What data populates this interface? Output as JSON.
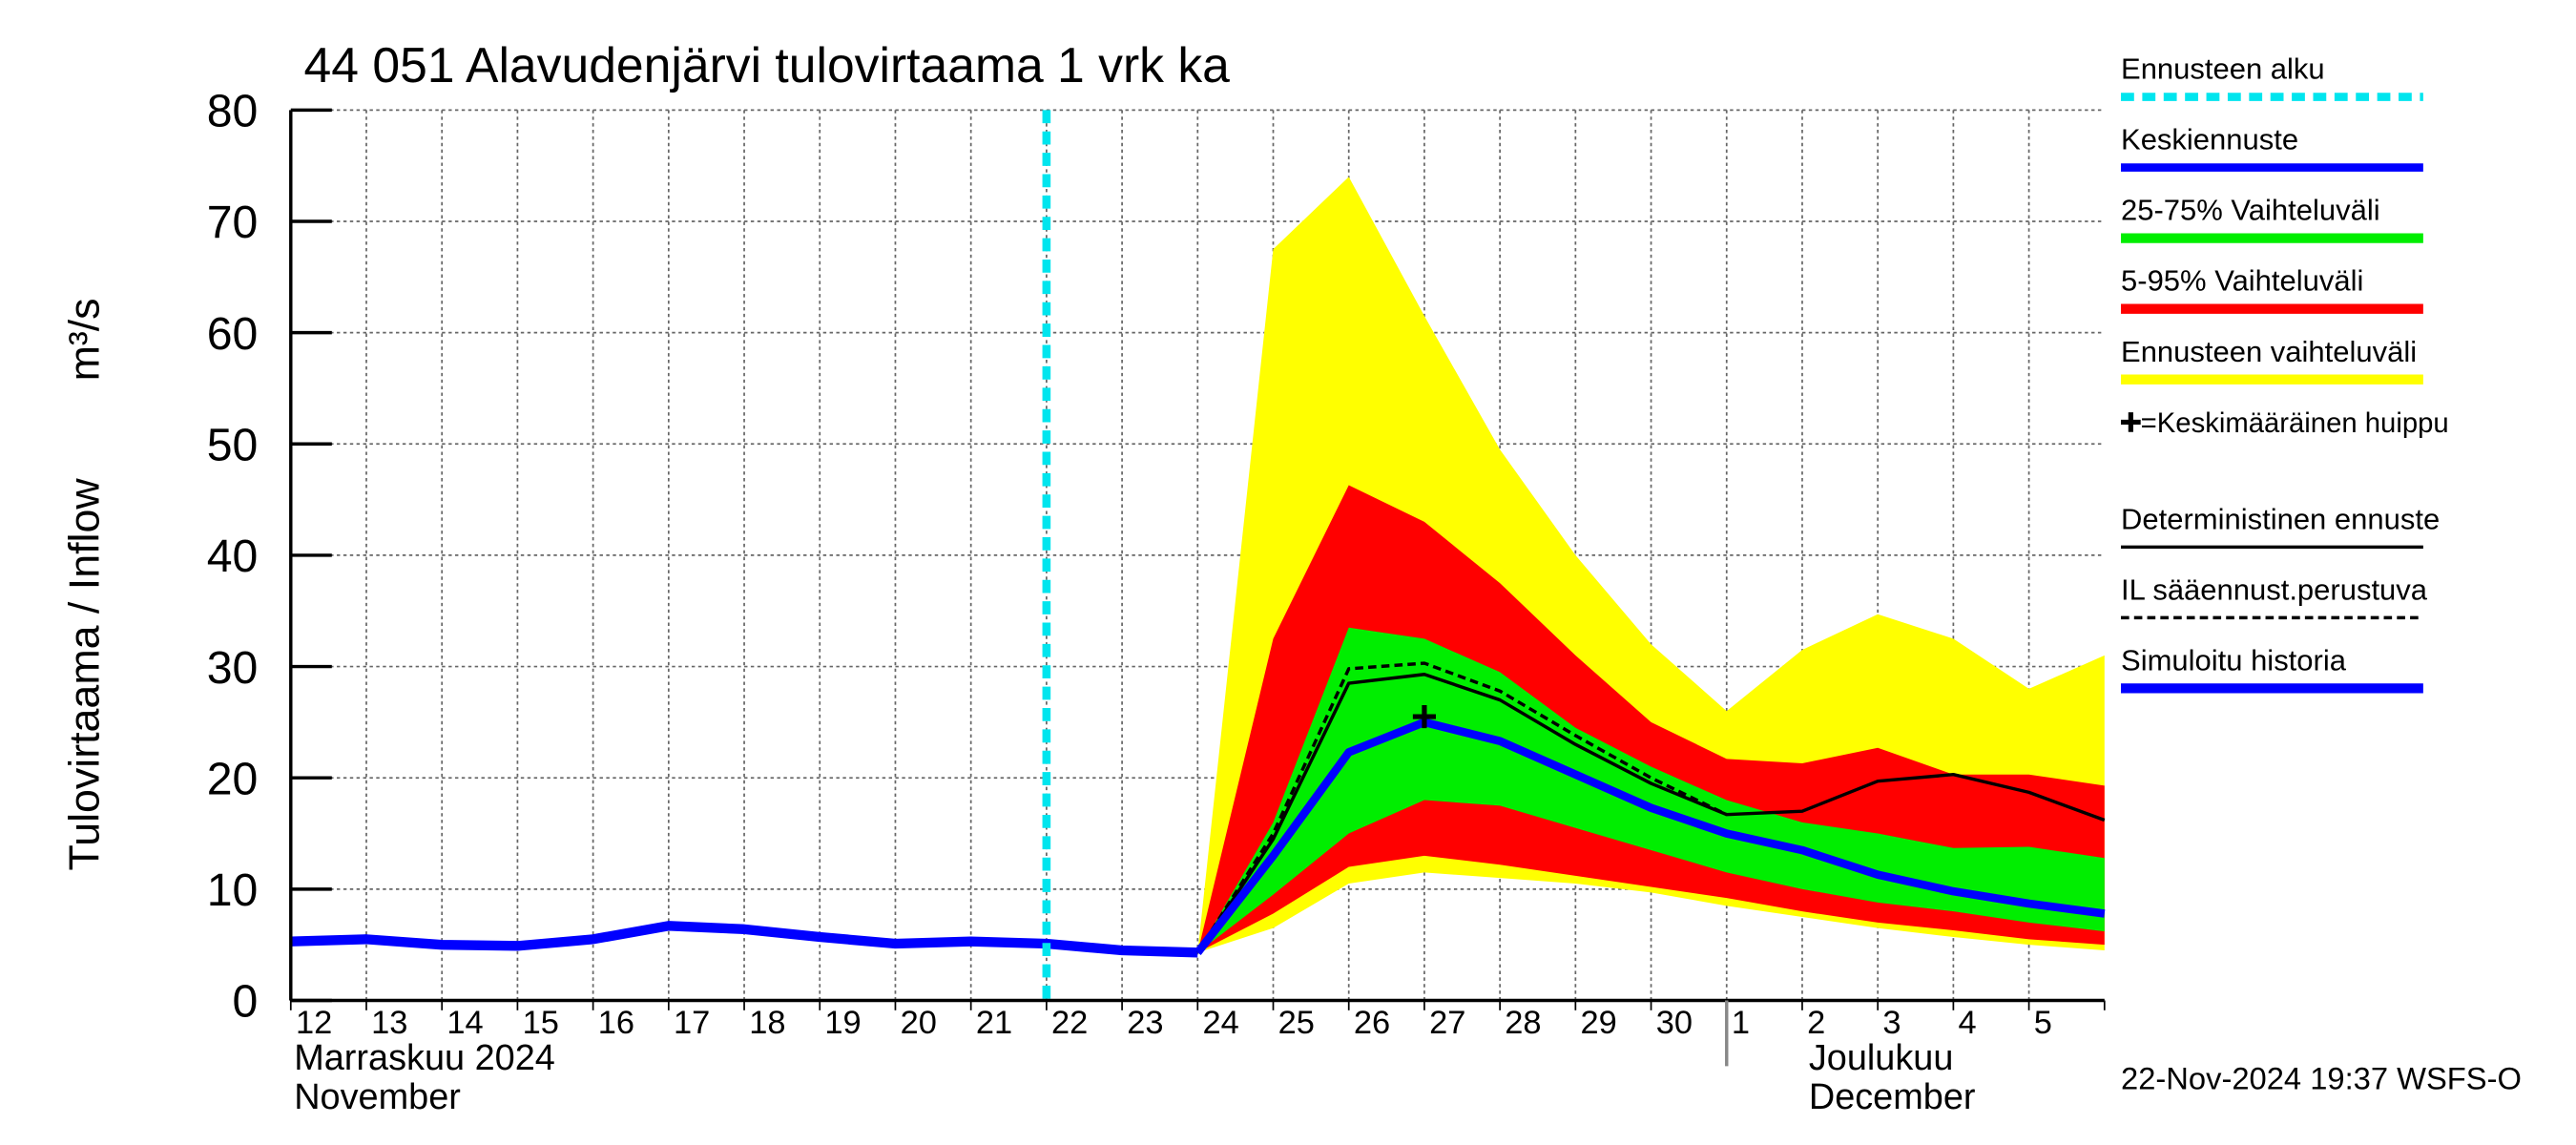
{
  "chart_data": {
    "type": "fan",
    "title": "44 051 Alavudenjärvi tulovirtaama 1 vrk ka",
    "y_label": "Tulovirtaama / Inflow",
    "y_unit": "m³/s",
    "categories": [
      "12",
      "13",
      "14",
      "15",
      "16",
      "17",
      "18",
      "19",
      "20",
      "21",
      "22",
      "23",
      "24",
      "25",
      "26",
      "27",
      "28",
      "29",
      "30",
      "1",
      "2",
      "3",
      "4",
      "5",
      null
    ],
    "month_labels": [
      {
        "x": "12",
        "lines": [
          "Marraskuu 2024",
          "November"
        ]
      },
      {
        "x": "1",
        "lines": [
          "Joulukuu",
          "December"
        ]
      }
    ],
    "ylim": [
      0,
      80
    ],
    "yticks": [
      0,
      10,
      20,
      30,
      40,
      50,
      60,
      70,
      80
    ],
    "grid": true,
    "timestamp": "22-Nov-2024 19:37 WSFS-O",
    "series": [
      {
        "name": "Ennusteen alku",
        "kind": "vline",
        "color": "#00e5ee",
        "x": "22"
      },
      {
        "name": "Keskiennuste",
        "kind": "line",
        "color": "#0000ff",
        "width": 5,
        "values": [
          null,
          null,
          null,
          null,
          null,
          null,
          null,
          null,
          null,
          null,
          null,
          null,
          4.3,
          13,
          22.3,
          25,
          23.3,
          20.3,
          17.3,
          15,
          13.5,
          11.3,
          9.8,
          8.7,
          7.8
        ]
      },
      {
        "name": "25-75% Vaihteluväli",
        "kind": "band",
        "color": "#00ee00",
        "lower": [
          null,
          null,
          null,
          null,
          null,
          null,
          null,
          null,
          null,
          null,
          null,
          null,
          4.3,
          9.5,
          15,
          18,
          17.5,
          15.5,
          13.5,
          11.5,
          10,
          8.8,
          8,
          7,
          6.2
        ],
        "upper": [
          null,
          null,
          null,
          null,
          null,
          null,
          null,
          null,
          null,
          null,
          null,
          null,
          4.3,
          16,
          33.5,
          32.5,
          29.5,
          24.5,
          21,
          18,
          16,
          15,
          13.7,
          13.8,
          12.8
        ]
      },
      {
        "name": "5-95% Vaihteluväli",
        "kind": "band",
        "color": "#ff0000",
        "lower": [
          null,
          null,
          null,
          null,
          null,
          null,
          null,
          null,
          null,
          null,
          null,
          null,
          4.3,
          7.8,
          12,
          13,
          12.2,
          11.2,
          10.2,
          9.2,
          8,
          7,
          6.3,
          5.5,
          5
        ],
        "upper": [
          null,
          null,
          null,
          null,
          null,
          null,
          null,
          null,
          null,
          null,
          null,
          null,
          4.3,
          32.5,
          46.3,
          43,
          37.5,
          31,
          25,
          21.7,
          21.3,
          22.7,
          20.3,
          20.3,
          19.3
        ]
      },
      {
        "name": "Ennusteen vaihteluväli",
        "kind": "band",
        "color": "#ffff00",
        "lower": [
          null,
          null,
          null,
          null,
          null,
          null,
          null,
          null,
          null,
          null,
          null,
          null,
          4.3,
          6.5,
          10.5,
          11.5,
          11,
          10.5,
          9.7,
          8.5,
          7.5,
          6.5,
          5.7,
          5,
          4.5
        ],
        "upper": [
          null,
          null,
          null,
          null,
          null,
          null,
          null,
          null,
          null,
          null,
          null,
          null,
          4.3,
          67.5,
          74,
          61.5,
          49.5,
          40,
          32,
          26,
          31.5,
          34.7,
          32.5,
          28,
          31
        ]
      },
      {
        "name": "=Keskimääräinen huippu",
        "kind": "marker",
        "color": "#000000",
        "x": "27",
        "value": 25.5
      },
      {
        "name": "Deterministinen ennuste",
        "kind": "line",
        "color": "#000000",
        "width": 2,
        "values": [
          null,
          null,
          null,
          null,
          null,
          null,
          null,
          null,
          null,
          null,
          null,
          null,
          4.3,
          14.5,
          28.5,
          29.3,
          27,
          23,
          19.5,
          16.7,
          17,
          19.7,
          20.3,
          18.7,
          16.2
        ]
      },
      {
        "name": "IL sääennust.perustuva",
        "kind": "line",
        "color": "#000000",
        "width": 2,
        "dash": true,
        "values": [
          null,
          null,
          null,
          null,
          null,
          null,
          null,
          null,
          null,
          null,
          null,
          null,
          4.3,
          15,
          29.8,
          30.3,
          27.8,
          23.8,
          20,
          16.7,
          null,
          null,
          null,
          null,
          null
        ]
      },
      {
        "name": "Simuloitu historia",
        "kind": "line",
        "color": "#0000ff",
        "width": 6,
        "values": [
          5.3,
          5.5,
          5.0,
          4.9,
          5.5,
          6.7,
          6.4,
          5.7,
          5.1,
          5.3,
          5.1,
          4.5,
          4.3,
          null,
          null,
          null,
          null,
          null,
          null,
          null,
          null,
          null,
          null,
          null,
          null
        ]
      }
    ]
  }
}
